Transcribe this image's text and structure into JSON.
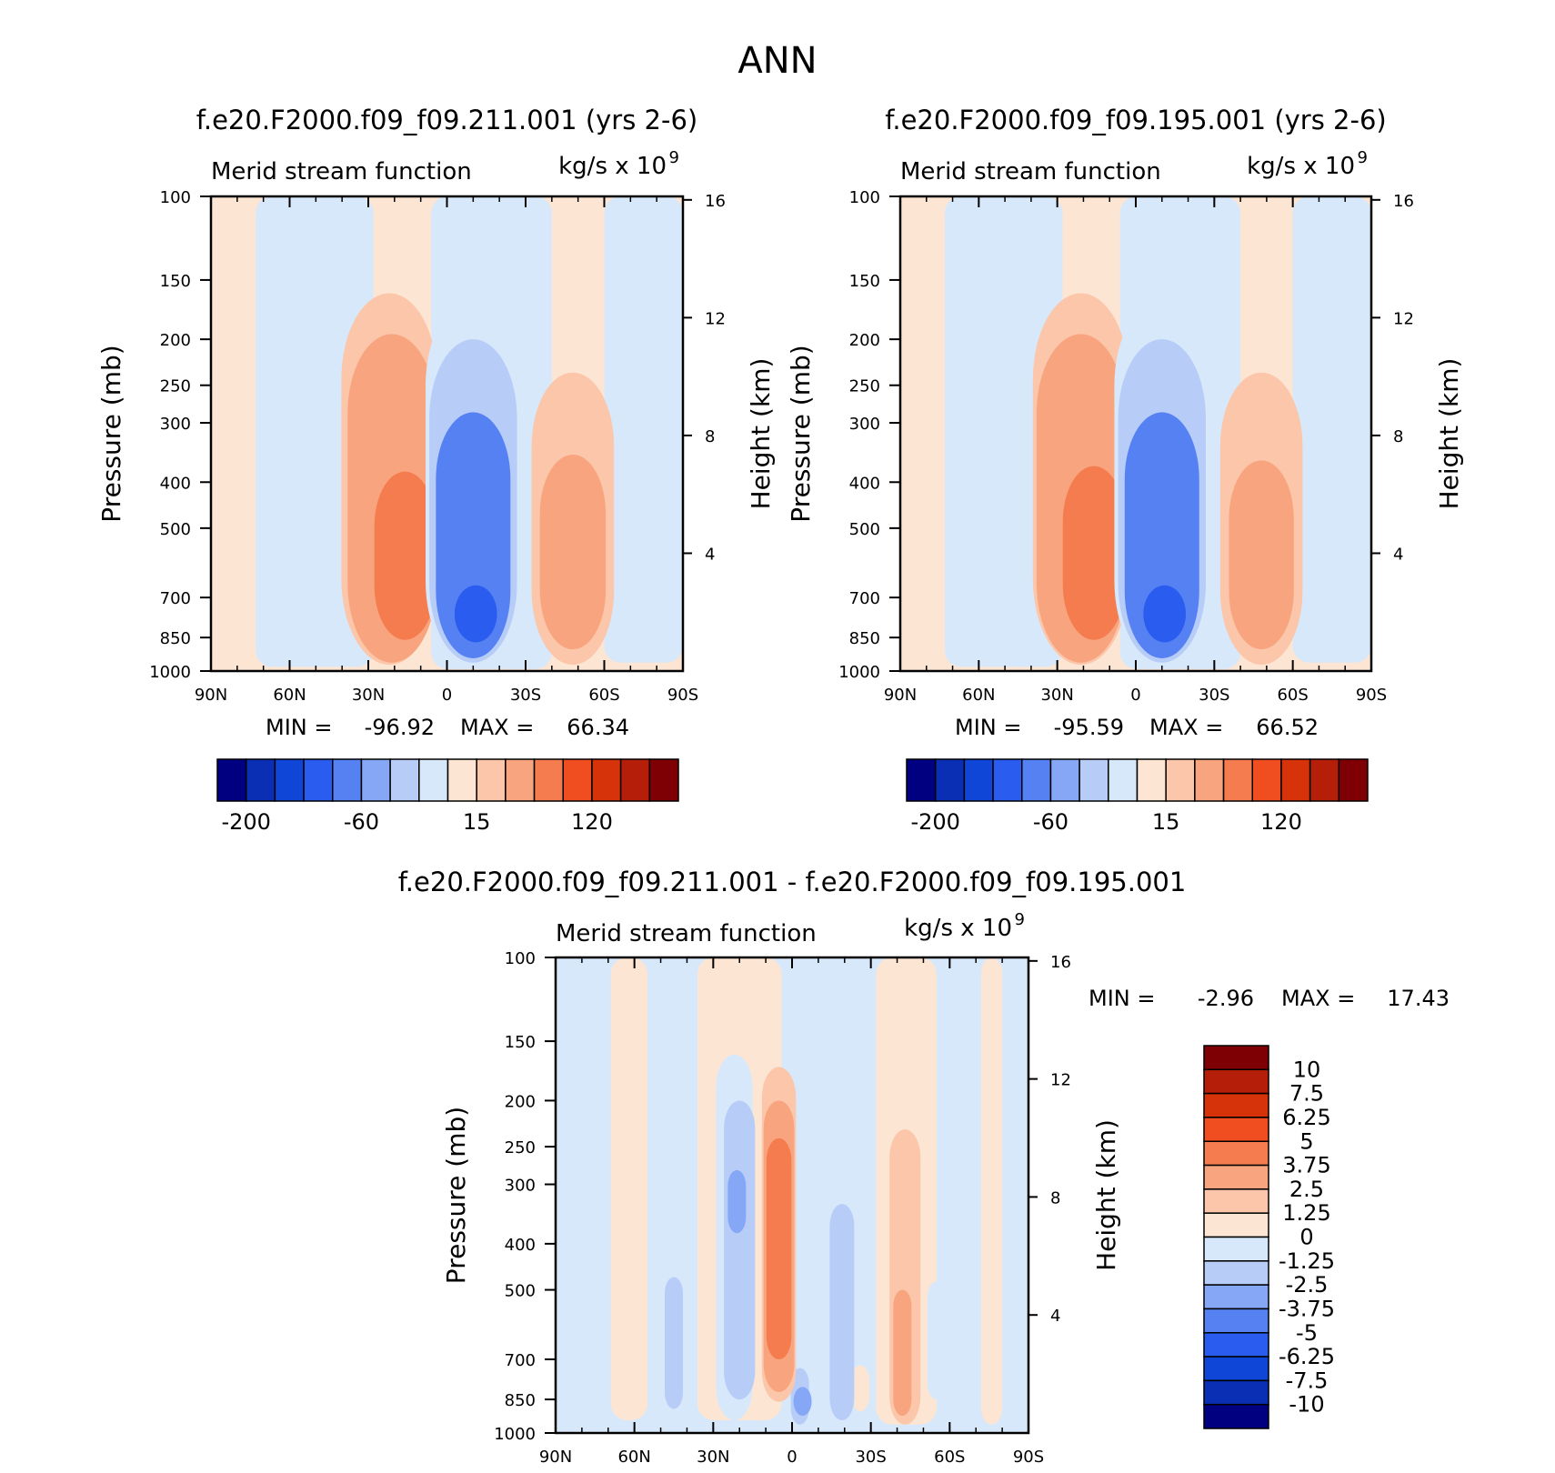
{
  "figure": {
    "title": "ANN"
  },
  "palettes": {
    "main": [
      "#000080",
      "#0a2fb4",
      "#0f46d8",
      "#2a5cf0",
      "#5581f2",
      "#86a7f5",
      "#b7cdf8",
      "#d8e8fb",
      "#fde5d3",
      "#fbc6aa",
      "#f8a57f",
      "#f47c4f",
      "#f04d20",
      "#d6330a",
      "#b51e08",
      "#7e0004"
    ],
    "diff": [
      "#000080",
      "#0a2fb4",
      "#0f46d8",
      "#2a5cf0",
      "#5581f2",
      "#86a7f5",
      "#b7cdf8",
      "#d8e8fb",
      "#fde5d3",
      "#fbc6aa",
      "#f8a57f",
      "#f47c4f",
      "#f04d20",
      "#d6330a",
      "#b51e08",
      "#7e0004"
    ]
  },
  "panels": [
    {
      "title": "f.e20.F2000.f09_f09.211.001 (yrs 2-6)",
      "left_label": "Merid stream function",
      "units_label": "kg/s x 10",
      "units_exp": "9",
      "y_label": "Pressure (mb)",
      "y2_label": "Height (km)",
      "stats": {
        "min_label": "MIN =",
        "min_value": "-96.92",
        "max_label": "MAX =",
        "max_value": "66.34"
      },
      "colorbar_labels": [
        "-200",
        "-60",
        "15",
        "120"
      ]
    },
    {
      "title": "f.e20.F2000.f09_f09.195.001 (yrs 2-6)",
      "left_label": "Merid stream function",
      "units_label": "kg/s x 10",
      "units_exp": "9",
      "y_label": "Pressure (mb)",
      "y2_label": "Height (km)",
      "stats": {
        "min_label": "MIN =",
        "min_value": "-95.59",
        "max_label": "MAX =",
        "max_value": "66.52"
      },
      "colorbar_labels": [
        "-200",
        "-60",
        "15",
        "120"
      ]
    },
    {
      "title": "f.e20.F2000.f09_f09.211.001 - f.e20.F2000.f09_f09.195.001",
      "left_label": "Merid stream function",
      "units_label": "kg/s x 10",
      "units_exp": "9",
      "y_label": "Pressure (mb)",
      "y2_label": "Height (km)",
      "stats": {
        "min_label": "MIN =",
        "min_value": "-2.96",
        "max_label": "MAX =",
        "max_value": "17.43"
      },
      "colorbar_labels": [
        "10",
        "7.5",
        "6.25",
        "5",
        "3.75",
        "2.5",
        "1.25",
        "0",
        "-1.25",
        "-2.5",
        "-3.75",
        "-5",
        "-6.25",
        "-7.5",
        "-10"
      ]
    }
  ],
  "chart_data": [
    {
      "type": "heatmap",
      "title": "f.e20.F2000.f09_f09.211.001 (yrs 2-6)",
      "ylabel": "Pressure (mb)",
      "y2label": "Height (km)",
      "x_ticks": [
        "90N",
        "60N",
        "30N",
        "0",
        "30S",
        "60S",
        "90S"
      ],
      "x_tick_values": [
        90,
        60,
        30,
        0,
        -30,
        -60,
        -90
      ],
      "xlim": [
        90,
        -90
      ],
      "y_ticks": [
        100,
        150,
        200,
        250,
        300,
        400,
        500,
        700,
        850,
        1000
      ],
      "ylim": [
        1000,
        100
      ],
      "y_scale": "log",
      "y2_ticks": [
        4,
        8,
        12,
        16
      ],
      "levels": [
        -200,
        -60,
        15,
        120
      ],
      "cells": [
        {
          "lat": 45,
          "p_top": 305,
          "p_bottom": 900,
          "value": -15
        },
        {
          "lat": 41,
          "p_top": 190,
          "p_bottom": 930,
          "value": -5
        },
        {
          "lat": 22,
          "p_top": 160,
          "p_bottom": 970,
          "value": 15
        },
        {
          "lat": 21,
          "p_top": 195,
          "p_bottom": 960,
          "value": 30
        },
        {
          "lat": 16,
          "p_top": 380,
          "p_bottom": 860,
          "value": 50
        },
        {
          "lat": -10,
          "p_top": 165,
          "p_bottom": 980,
          "value": -20
        },
        {
          "lat": -10,
          "p_top": 200,
          "p_bottom": 960,
          "value": -40
        },
        {
          "lat": -10,
          "p_top": 285,
          "p_bottom": 940,
          "value": -65
        },
        {
          "lat": -11,
          "p_top": 660,
          "p_bottom": 870,
          "value": -90
        },
        {
          "lat": -48,
          "p_top": 235,
          "p_bottom": 970,
          "value": 15
        },
        {
          "lat": -48,
          "p_top": 350,
          "p_bottom": 900,
          "value": 30
        }
      ],
      "min": -96.92,
      "max": 66.34
    },
    {
      "type": "heatmap",
      "title": "f.e20.F2000.f09_f09.195.001 (yrs 2-6)",
      "ylabel": "Pressure (mb)",
      "y2label": "Height (km)",
      "x_ticks": [
        "90N",
        "60N",
        "30N",
        "0",
        "30S",
        "60S",
        "90S"
      ],
      "x_tick_values": [
        90,
        60,
        30,
        0,
        -30,
        -60,
        -90
      ],
      "xlim": [
        90,
        -90
      ],
      "y_ticks": [
        100,
        150,
        200,
        250,
        300,
        400,
        500,
        700,
        850,
        1000
      ],
      "ylim": [
        1000,
        100
      ],
      "y_scale": "log",
      "y2_ticks": [
        4,
        8,
        12,
        16
      ],
      "levels": [
        -200,
        -60,
        15,
        120
      ],
      "cells": [
        {
          "lat": 45,
          "p_top": 305,
          "p_bottom": 900,
          "value": -15
        },
        {
          "lat": 41,
          "p_top": 190,
          "p_bottom": 930,
          "value": -5
        },
        {
          "lat": 21,
          "p_top": 160,
          "p_bottom": 970,
          "value": 15
        },
        {
          "lat": 21,
          "p_top": 195,
          "p_bottom": 960,
          "value": 30
        },
        {
          "lat": 16,
          "p_top": 370,
          "p_bottom": 860,
          "value": 50
        },
        {
          "lat": -10,
          "p_top": 165,
          "p_bottom": 980,
          "value": -20
        },
        {
          "lat": -10,
          "p_top": 200,
          "p_bottom": 960,
          "value": -40
        },
        {
          "lat": -10,
          "p_top": 285,
          "p_bottom": 940,
          "value": -65
        },
        {
          "lat": -11,
          "p_top": 660,
          "p_bottom": 870,
          "value": -90
        },
        {
          "lat": -48,
          "p_top": 235,
          "p_bottom": 970,
          "value": 15
        },
        {
          "lat": -48,
          "p_top": 360,
          "p_bottom": 900,
          "value": 30
        }
      ],
      "min": -95.59,
      "max": 66.52
    },
    {
      "type": "heatmap",
      "title": "f.e20.F2000.f09_f09.211.001 - f.e20.F2000.f09_f09.195.001",
      "ylabel": "Pressure (mb)",
      "y2label": "Height (km)",
      "x_ticks": [
        "90N",
        "60N",
        "30N",
        "0",
        "30S",
        "60S",
        "90S"
      ],
      "x_tick_values": [
        90,
        60,
        30,
        0,
        -30,
        -60,
        -90
      ],
      "xlim": [
        90,
        -90
      ],
      "y_ticks": [
        100,
        150,
        200,
        250,
        300,
        400,
        500,
        700,
        850,
        1000
      ],
      "ylim": [
        1000,
        100
      ],
      "y_scale": "log",
      "y2_ticks": [
        4,
        8,
        12,
        16
      ],
      "levels": [
        -10,
        -7.5,
        -6.25,
        -5,
        -3.75,
        -2.5,
        -1.25,
        0,
        1.25,
        2.5,
        3.75,
        5,
        6.25,
        7.5,
        10
      ],
      "cells": [
        {
          "lat": 60,
          "p_top": 460,
          "p_bottom": 900,
          "value": 0.8
        },
        {
          "lat": 45,
          "p_top": 470,
          "p_bottom": 890,
          "value": -1.3
        },
        {
          "lat": 29,
          "p_top": 380,
          "p_bottom": 550,
          "value": 0.6
        },
        {
          "lat": -20,
          "p_top": 290,
          "p_bottom": 400,
          "value": -1.0
        },
        {
          "lat": -26,
          "p_top": 720,
          "p_bottom": 900,
          "value": 0.6
        },
        {
          "lat": -3,
          "p_top": 730,
          "p_bottom": 960,
          "value": -1.3
        },
        {
          "lat": -19,
          "p_top": 330,
          "p_bottom": 940,
          "value": -1.3
        },
        {
          "lat": 22,
          "p_top": 160,
          "p_bottom": 940,
          "value": -1.2
        },
        {
          "lat": 20,
          "p_top": 200,
          "p_bottom": 850,
          "value": -2.0
        },
        {
          "lat": 21,
          "p_top": 280,
          "p_bottom": 380,
          "value": -3.0
        },
        {
          "lat": 5,
          "p_top": 170,
          "p_bottom": 860,
          "value": 1.5
        },
        {
          "lat": 5,
          "p_top": 200,
          "p_bottom": 820,
          "value": 3.0
        },
        {
          "lat": 5,
          "p_top": 240,
          "p_bottom": 700,
          "value": 4.5
        },
        {
          "lat": -4,
          "p_top": 800,
          "p_bottom": 920,
          "value": -3.0
        },
        {
          "lat": -43,
          "p_top": 230,
          "p_bottom": 960,
          "value": 1.5
        },
        {
          "lat": -42,
          "p_top": 500,
          "p_bottom": 920,
          "value": 2.5
        },
        {
          "lat": -55,
          "p_top": 480,
          "p_bottom": 850,
          "value": -0.6
        }
      ],
      "min": -2.96,
      "max": 17.43
    }
  ]
}
